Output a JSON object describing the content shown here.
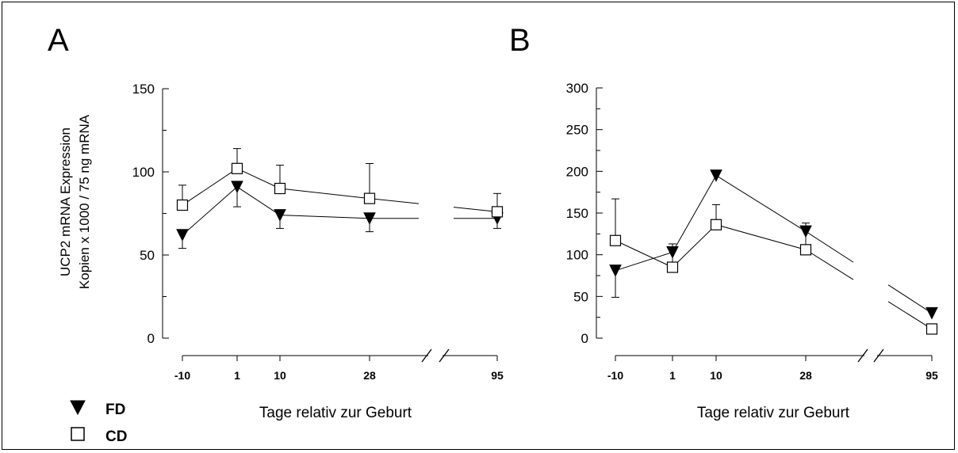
{
  "chart_data": [
    {
      "panel": "A",
      "type": "line",
      "ylabel_lines": [
        "UCP2 mRNA Expression",
        "Kopien x 1000 / 75 ng mRNA"
      ],
      "xlabel": "Tage relativ zur Geburt",
      "ylim": [
        0,
        150
      ],
      "yticks": [
        "0",
        "50",
        "100",
        "150"
      ],
      "yticks_values": [
        0,
        50,
        100,
        150
      ],
      "xticks": [
        "-10",
        "1",
        "10",
        "28",
        "95"
      ],
      "axis_break": true,
      "series": [
        {
          "name": "FD",
          "values": [
            62,
            91,
            74,
            72,
            72
          ],
          "err": [
            8,
            12,
            8,
            8,
            6
          ]
        },
        {
          "name": "CD",
          "values": [
            80,
            102,
            90,
            84,
            76
          ],
          "err": [
            12,
            12,
            14,
            21,
            11
          ]
        }
      ]
    },
    {
      "panel": "B",
      "type": "line",
      "xlabel": "Tage relativ zur Geburt",
      "ylim": [
        0,
        300
      ],
      "yticks": [
        "0",
        "50",
        "100",
        "150",
        "200",
        "250",
        "300"
      ],
      "yticks_values": [
        0,
        50,
        100,
        150,
        200,
        250,
        300
      ],
      "xticks": [
        "-10",
        "1",
        "10",
        "28",
        "95"
      ],
      "axis_break": true,
      "series": [
        {
          "name": "FD",
          "values": [
            81,
            103,
            195,
            128,
            30
          ],
          "err": [
            32,
            19,
            0,
            27,
            0
          ]
        },
        {
          "name": "CD",
          "values": [
            117,
            85,
            136,
            106,
            11
          ],
          "err": [
            50,
            28,
            24,
            32,
            0
          ]
        }
      ]
    }
  ],
  "legend": [
    {
      "name": "FD",
      "marker": "filled-triangle-down"
    },
    {
      "name": "CD",
      "marker": "open-square"
    }
  ],
  "colors": {
    "ink": "#000000",
    "background": "#ffffff"
  }
}
